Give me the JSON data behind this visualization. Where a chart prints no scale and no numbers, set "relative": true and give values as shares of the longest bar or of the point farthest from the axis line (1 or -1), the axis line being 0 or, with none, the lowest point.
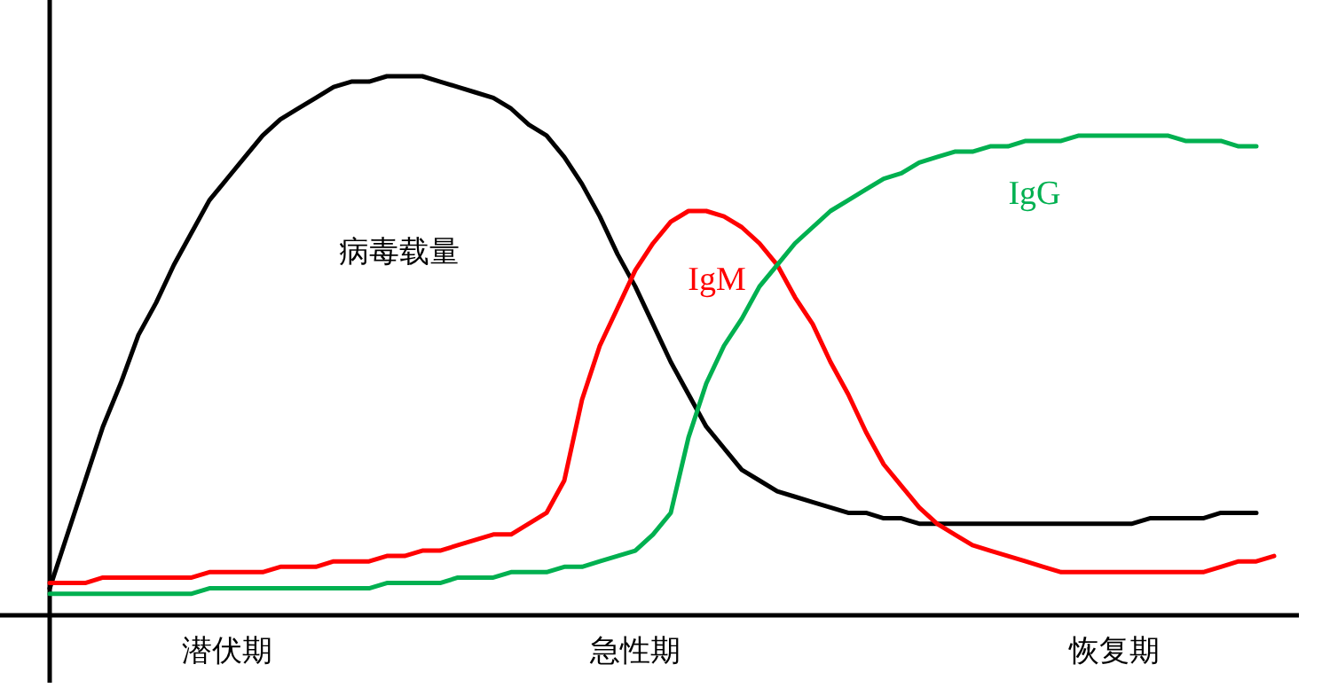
{
  "chart_data": {
    "type": "line",
    "relative": true,
    "grid": false,
    "marker": "none",
    "line_style": "solid",
    "categories": [
      null,
      null,
      null,
      null,
      null,
      null,
      null,
      null,
      null,
      null,
      "潜伏期",
      null,
      null,
      null,
      null,
      null,
      null,
      null,
      null,
      null,
      null,
      null,
      null,
      null,
      null,
      null,
      null,
      null,
      null,
      null,
      null,
      null,
      null,
      "急性期",
      null,
      null,
      null,
      null,
      null,
      null,
      null,
      null,
      null,
      null,
      null,
      null,
      null,
      null,
      null,
      null,
      null,
      null,
      null,
      null,
      null,
      null,
      null,
      null,
      null,
      null,
      "恢复期",
      null,
      null,
      null,
      null,
      null,
      null,
      null,
      null,
      null,
      null
    ],
    "series": [
      {
        "name": "病毒载量",
        "color": "#000000",
        "values": [
          0.05,
          0.15,
          0.25,
          0.35,
          0.43,
          0.52,
          0.58,
          0.65,
          0.71,
          0.77,
          0.81,
          0.85,
          0.89,
          0.92,
          0.94,
          0.96,
          0.98,
          0.99,
          0.99,
          1.0,
          1.0,
          1.0,
          0.99,
          0.98,
          0.97,
          0.96,
          0.94,
          0.91,
          0.89,
          0.85,
          0.8,
          0.74,
          0.67,
          0.61,
          0.54,
          0.47,
          0.41,
          0.35,
          0.31,
          0.27,
          0.25,
          0.23,
          0.22,
          0.21,
          0.2,
          0.19,
          0.19,
          0.18,
          0.18,
          0.17,
          0.17,
          0.17,
          0.17,
          0.17,
          0.17,
          0.17,
          0.17,
          0.17,
          0.17,
          0.17,
          0.17,
          0.17,
          0.18,
          0.18,
          0.18,
          0.18,
          0.19,
          0.19,
          0.19,
          null,
          null
        ]
      },
      {
        "name": "IgM",
        "color": "#ff0000",
        "values": [
          0.06,
          0.06,
          0.06,
          0.07,
          0.07,
          0.07,
          0.07,
          0.07,
          0.07,
          0.08,
          0.08,
          0.08,
          0.08,
          0.09,
          0.09,
          0.09,
          0.1,
          0.1,
          0.1,
          0.11,
          0.11,
          0.12,
          0.12,
          0.13,
          0.14,
          0.15,
          0.15,
          0.17,
          0.19,
          0.25,
          0.4,
          0.5,
          0.57,
          0.64,
          0.69,
          0.73,
          0.75,
          0.75,
          0.74,
          0.72,
          0.69,
          0.65,
          0.59,
          0.54,
          0.47,
          0.41,
          0.34,
          0.28,
          0.24,
          0.2,
          0.17,
          0.15,
          0.13,
          0.12,
          0.11,
          0.1,
          0.09,
          0.08,
          0.08,
          0.08,
          0.08,
          0.08,
          0.08,
          0.08,
          0.08,
          0.08,
          0.09,
          0.1,
          0.1,
          0.11,
          null
        ]
      },
      {
        "name": "IgG",
        "color": "#00b050",
        "values": [
          0.04,
          0.04,
          0.04,
          0.04,
          0.04,
          0.04,
          0.04,
          0.04,
          0.04,
          0.05,
          0.05,
          0.05,
          0.05,
          0.05,
          0.05,
          0.05,
          0.05,
          0.05,
          0.05,
          0.06,
          0.06,
          0.06,
          0.06,
          0.07,
          0.07,
          0.07,
          0.08,
          0.08,
          0.08,
          0.09,
          0.09,
          0.1,
          0.11,
          0.12,
          0.15,
          0.19,
          0.33,
          0.43,
          0.5,
          0.55,
          0.61,
          0.65,
          0.69,
          0.72,
          0.75,
          0.77,
          0.79,
          0.81,
          0.82,
          0.84,
          0.85,
          0.86,
          0.86,
          0.87,
          0.87,
          0.88,
          0.88,
          0.88,
          0.89,
          0.89,
          0.89,
          0.89,
          0.89,
          0.89,
          0.88,
          0.88,
          0.88,
          0.87,
          0.87,
          null,
          null
        ]
      }
    ]
  }
}
